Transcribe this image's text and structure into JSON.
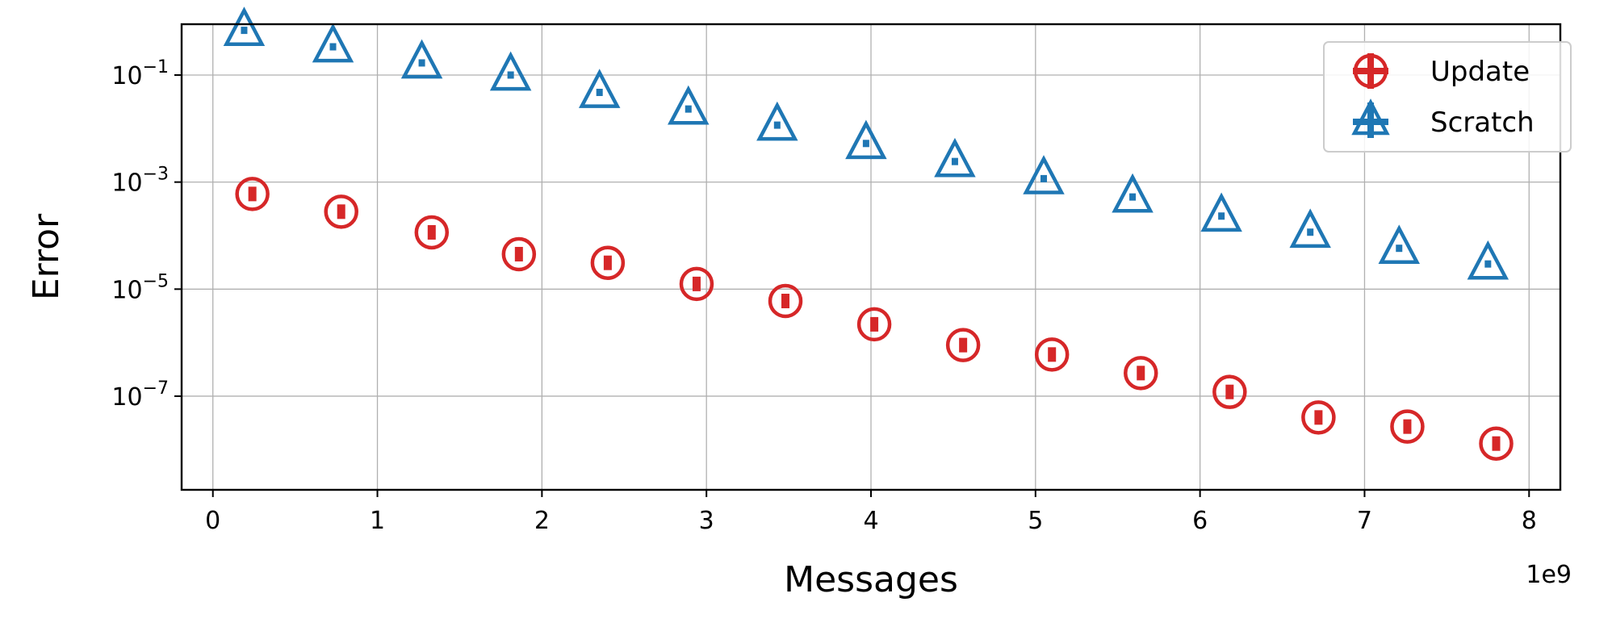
{
  "chart_data": {
    "type": "scatter",
    "title": "",
    "xlabel": "Messages",
    "ylabel": "Error",
    "x_offset_label": "1e9",
    "x_scale_factor": 1000000000,
    "xlim": [
      -0.19,
      8.19
    ],
    "ylim_log10": [
      -8.75,
      -0.05
    ],
    "yscale": "log",
    "grid": true,
    "legend_position": "top-right",
    "x_ticks": [
      0,
      1,
      2,
      3,
      4,
      5,
      6,
      7,
      8
    ],
    "x_tick_labels": [
      "0",
      "1",
      "2",
      "3",
      "4",
      "5",
      "6",
      "7",
      "8"
    ],
    "y_ticks_log10": [
      -1,
      -3,
      -5,
      -7
    ],
    "y_tick_labels": [
      {
        "base": "10",
        "exp": "−1"
      },
      {
        "base": "10",
        "exp": "−3"
      },
      {
        "base": "10",
        "exp": "−5"
      },
      {
        "base": "10",
        "exp": "−7"
      }
    ],
    "series": [
      {
        "name": "Update",
        "marker": "circle",
        "color": "#d62728",
        "x": [
          0.24,
          0.78,
          1.33,
          1.86,
          2.4,
          2.94,
          3.48,
          4.02,
          4.56,
          5.1,
          5.64,
          6.18,
          6.72,
          7.26,
          7.8
        ],
        "y": [
          0.0006,
          0.00028,
          0.000115,
          4.5e-05,
          3.1e-05,
          1.25e-05,
          6e-06,
          2.2e-06,
          9e-07,
          6e-07,
          2.7e-07,
          1.2e-07,
          4e-08,
          2.7e-08,
          1.3e-08
        ]
      },
      {
        "name": "Scratch",
        "marker": "triangle",
        "color": "#1f77b4",
        "x": [
          0.19,
          0.73,
          1.27,
          1.81,
          2.35,
          2.89,
          3.43,
          3.97,
          4.51,
          5.05,
          5.59,
          6.13,
          6.67,
          7.21,
          7.75
        ],
        "y": [
          0.65,
          0.32,
          0.16,
          0.095,
          0.045,
          0.022,
          0.011,
          0.005,
          0.0023,
          0.0011,
          0.0005,
          0.00022,
          0.00011,
          5.5e-05,
          2.8e-05
        ]
      }
    ]
  }
}
